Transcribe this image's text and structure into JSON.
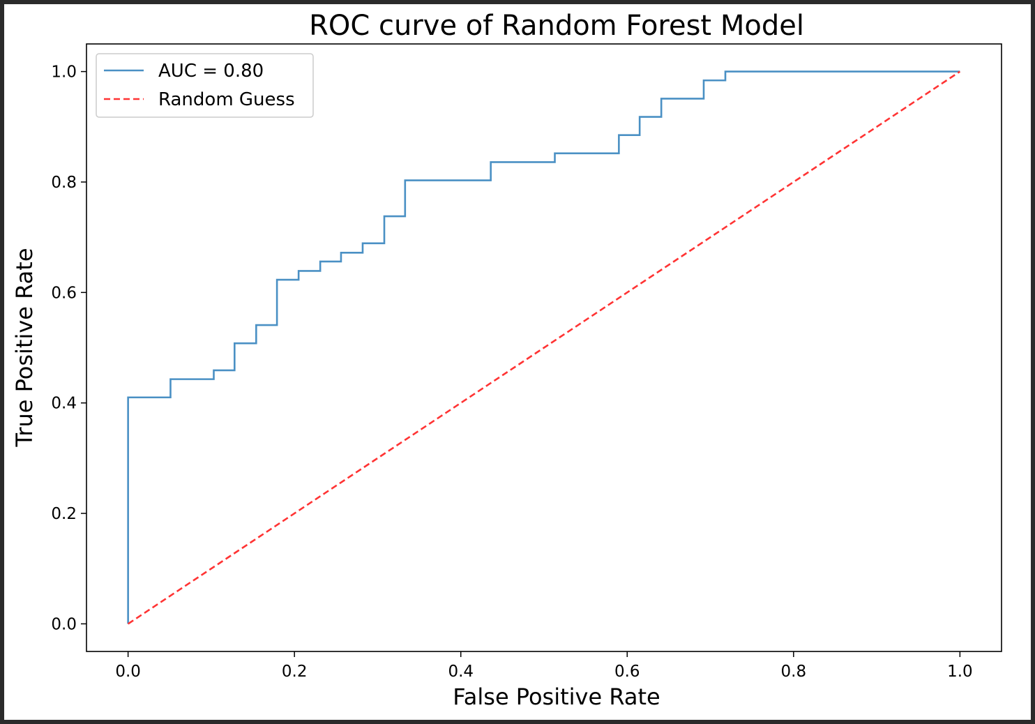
{
  "chart_data": {
    "type": "line",
    "title": "ROC curve of Random Forest Model",
    "xlabel": "False Positive Rate",
    "ylabel": "True Positive Rate",
    "xlim": [
      -0.05,
      1.05
    ],
    "ylim": [
      -0.05,
      1.05
    ],
    "xticks": [
      0.0,
      0.2,
      0.4,
      0.6,
      0.8,
      1.0
    ],
    "yticks": [
      0.0,
      0.2,
      0.4,
      0.6,
      0.8,
      1.0
    ],
    "xtick_labels": [
      "0.0",
      "0.2",
      "0.4",
      "0.6",
      "0.8",
      "1.0"
    ],
    "ytick_labels": [
      "0.0",
      "0.2",
      "0.4",
      "0.6",
      "0.8",
      "1.0"
    ],
    "grid": false,
    "legend_position": "top-left",
    "series": [
      {
        "name": "AUC = 0.80",
        "color": "#4a90c4",
        "style": "solid",
        "x": [
          0.0,
          0.0,
          0.051,
          0.051,
          0.103,
          0.103,
          0.128,
          0.128,
          0.154,
          0.154,
          0.179,
          0.179,
          0.205,
          0.205,
          0.231,
          0.231,
          0.256,
          0.256,
          0.282,
          0.282,
          0.308,
          0.308,
          0.333,
          0.333,
          0.436,
          0.436,
          0.513,
          0.513,
          0.59,
          0.59,
          0.615,
          0.615,
          0.641,
          0.641,
          0.692,
          0.692,
          0.718,
          0.718,
          1.0
        ],
        "y": [
          0.0,
          0.41,
          0.41,
          0.443,
          0.443,
          0.459,
          0.459,
          0.508,
          0.508,
          0.541,
          0.541,
          0.623,
          0.623,
          0.639,
          0.639,
          0.656,
          0.656,
          0.672,
          0.672,
          0.689,
          0.689,
          0.738,
          0.738,
          0.803,
          0.803,
          0.836,
          0.836,
          0.852,
          0.852,
          0.885,
          0.885,
          0.918,
          0.918,
          0.951,
          0.951,
          0.984,
          0.984,
          1.0,
          1.0
        ]
      },
      {
        "name": "Random Guess",
        "color": "#ff3333",
        "style": "dashed",
        "x": [
          0.0,
          1.0
        ],
        "y": [
          0.0,
          1.0
        ]
      }
    ]
  }
}
